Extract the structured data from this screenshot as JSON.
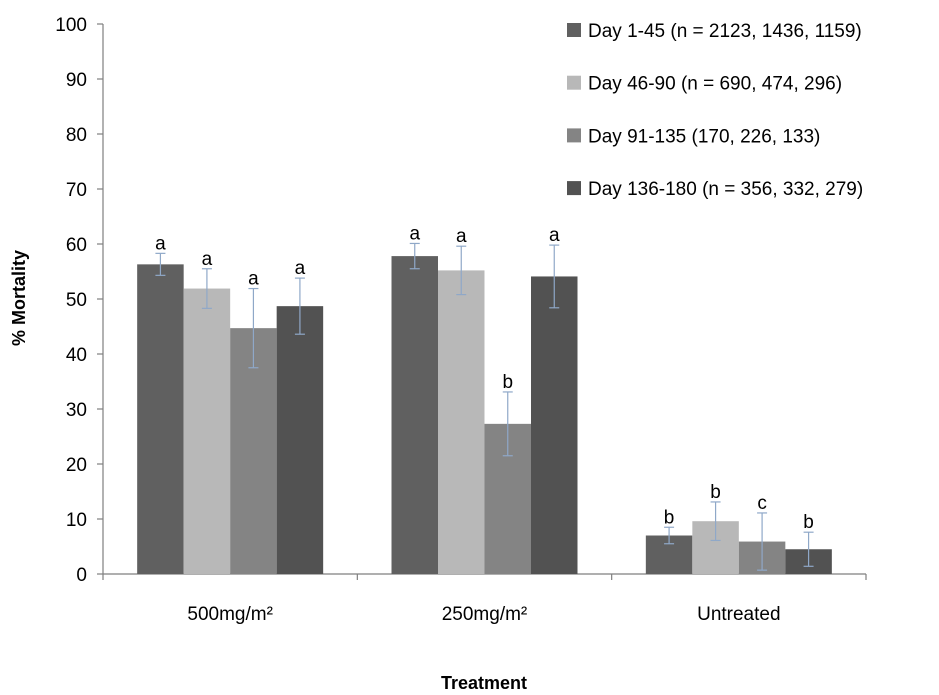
{
  "chart_data": {
    "type": "bar",
    "title": "",
    "xlabel": "Treatment",
    "ylabel": "% Mortality",
    "ylim": [
      0,
      100
    ],
    "yticks": [
      0,
      10,
      20,
      30,
      40,
      50,
      60,
      70,
      80,
      90,
      100
    ],
    "grid": false,
    "legend_position": "top-right",
    "categories": [
      "500mg/m²",
      "250mg/m²",
      "Untreated"
    ],
    "series": [
      {
        "name": "Day 1-45 (n = 2123, 1436, 1159)",
        "color": "#606060",
        "values": [
          56.3,
          57.8,
          7.0
        ],
        "error": [
          2.0,
          2.3,
          1.5
        ],
        "labels": [
          "a",
          "a",
          "b"
        ]
      },
      {
        "name": "Day 46-90 (n = 690, 474, 296)",
        "color": "#b8b8b8",
        "values": [
          51.9,
          55.2,
          9.6
        ],
        "error": [
          3.6,
          4.4,
          3.5
        ],
        "labels": [
          "a",
          "a",
          "b"
        ]
      },
      {
        "name": "Day 91-135 (170, 226, 133)",
        "color": "#848484",
        "values": [
          44.7,
          27.3,
          5.9
        ],
        "error": [
          7.2,
          5.8,
          5.2
        ],
        "labels": [
          "a",
          "b",
          "c"
        ]
      },
      {
        "name": "Day 136-180 (n = 356, 332, 279)",
        "color": "#525252",
        "values": [
          48.7,
          54.1,
          4.5
        ],
        "error": [
          5.1,
          5.7,
          3.1
        ],
        "labels": [
          "a",
          "a",
          "b"
        ]
      }
    ],
    "error_bar_color": "#8fa8c8"
  }
}
